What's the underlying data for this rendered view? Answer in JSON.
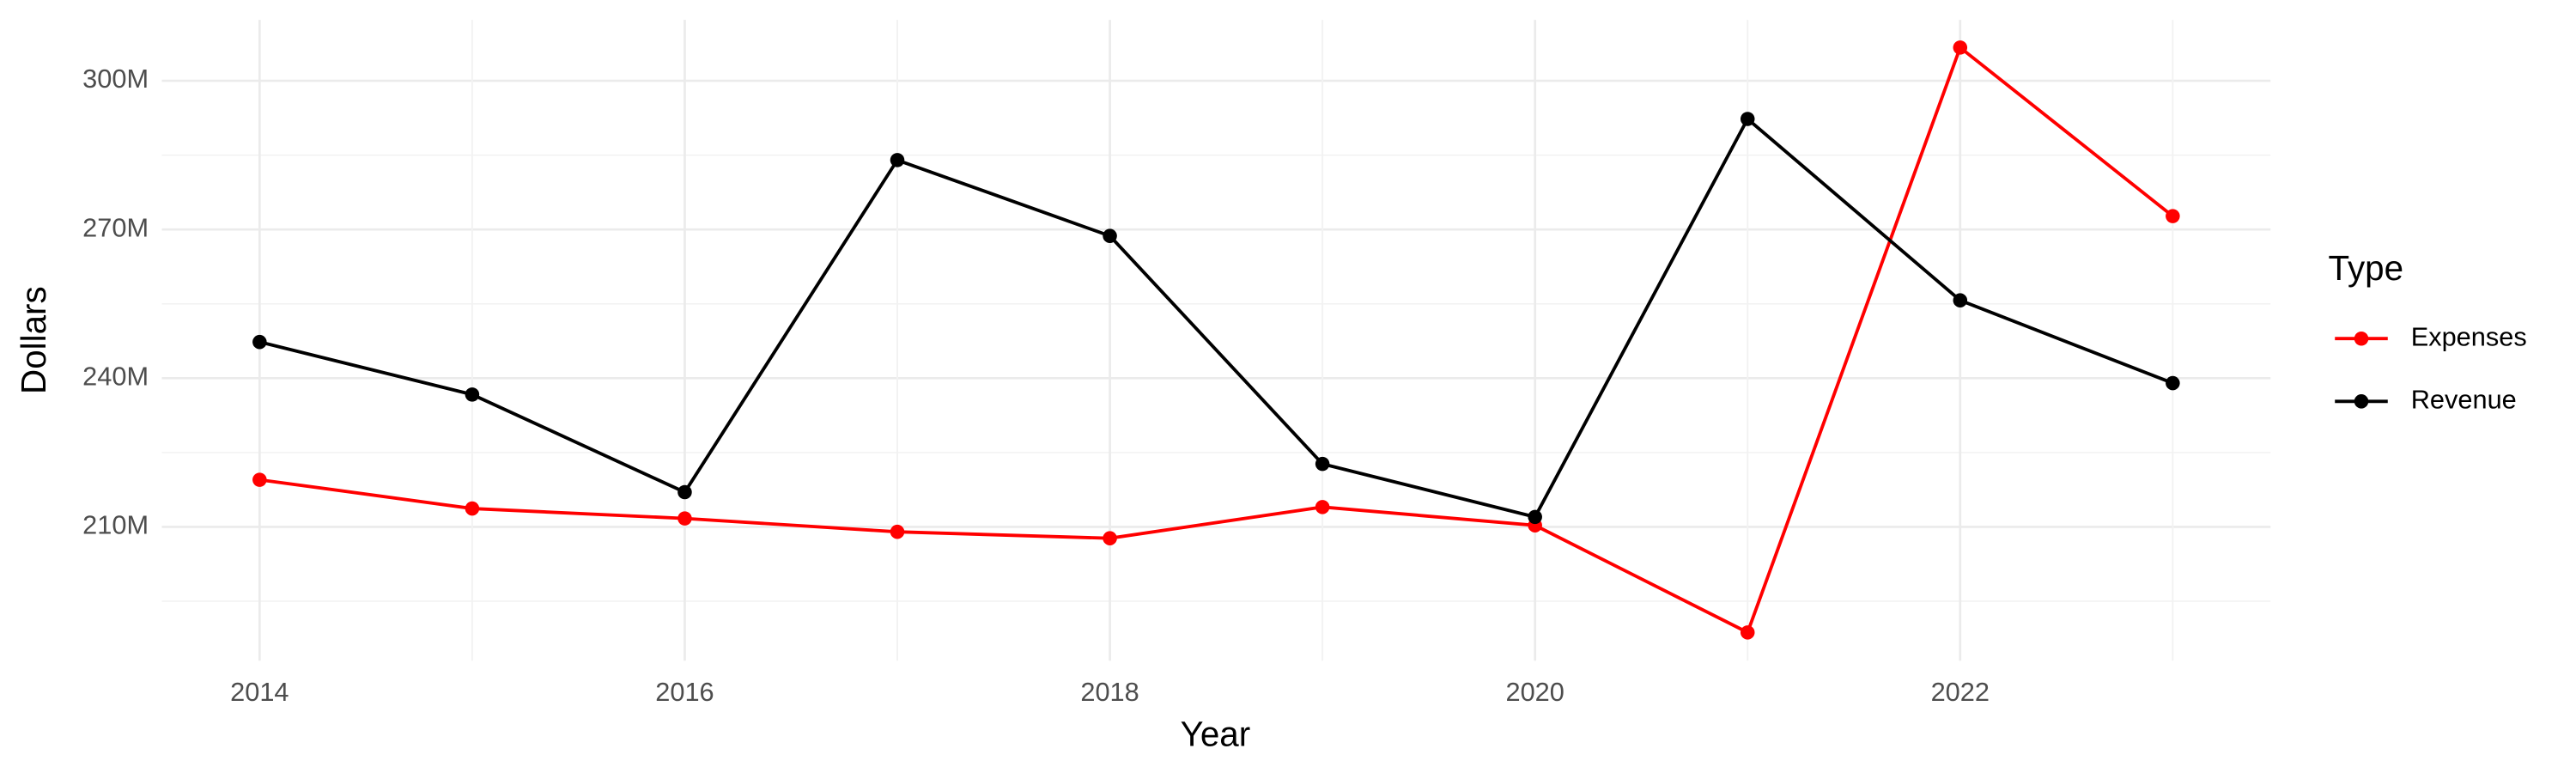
{
  "chart_data": {
    "type": "line",
    "x_label": "Year",
    "y_label": "Dollars",
    "legend_title": "Type",
    "x": [
      2014,
      2015,
      2016,
      2017,
      2018,
      2019,
      2020,
      2021,
      2022,
      2023
    ],
    "series": [
      {
        "name": "Expenses",
        "color": "#ff0000",
        "values": [
          219500000,
          213700000,
          211700000,
          209000000,
          207700000,
          214000000,
          210300000,
          188700000,
          306700000,
          272700000
        ]
      },
      {
        "name": "Revenue",
        "color": "#000000",
        "values": [
          247300000,
          236700000,
          217000000,
          284000000,
          268700000,
          222700000,
          212000000,
          292300000,
          255700000,
          239000000
        ]
      }
    ],
    "xlim": [
      2013.54,
      2023.46
    ],
    "xticks": [
      2014,
      2016,
      2018,
      2020,
      2022
    ],
    "ylim": [
      183000000,
      312300000
    ],
    "yticks": [
      {
        "value": 210000000,
        "label": "210M"
      },
      {
        "value": 240000000,
        "label": "240M"
      },
      {
        "value": 270000000,
        "label": "270M"
      },
      {
        "value": 300000000,
        "label": "300M"
      }
    ],
    "grid": true,
    "legend": "right"
  }
}
